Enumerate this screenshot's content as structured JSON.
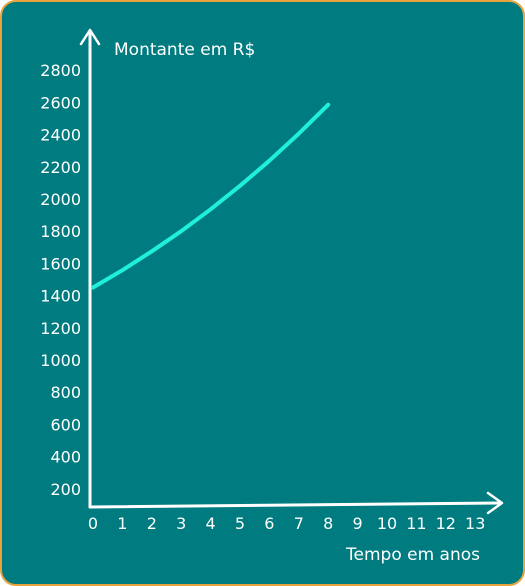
{
  "chart_data": {
    "type": "line",
    "ylabel": "Montante em R$",
    "xlabel": "Tempo em anos",
    "x_ticks": [
      "0",
      "1",
      "2",
      "3",
      "4",
      "5",
      "6",
      "7",
      "8",
      "9",
      "10",
      "11",
      "12",
      "13"
    ],
    "y_ticks": [
      "200",
      "400",
      "600",
      "800",
      "1000",
      "1200",
      "1400",
      "1600",
      "1800",
      "2000",
      "2200",
      "2400",
      "2600",
      "2800"
    ],
    "xlim": [
      0,
      13.6
    ],
    "ylim": [
      0,
      2900
    ],
    "grid": false,
    "series": [
      {
        "x": [
          0,
          1,
          2,
          3,
          4,
          5,
          6,
          7,
          8
        ],
        "y": [
          1450,
          1558,
          1675,
          1800,
          1936,
          2082,
          2238,
          2406,
          2586
        ]
      }
    ],
    "colors": {
      "background": "#007b80",
      "border": "#e8a33c",
      "line": "#1ff0dc",
      "axis": "#ffffff"
    }
  }
}
